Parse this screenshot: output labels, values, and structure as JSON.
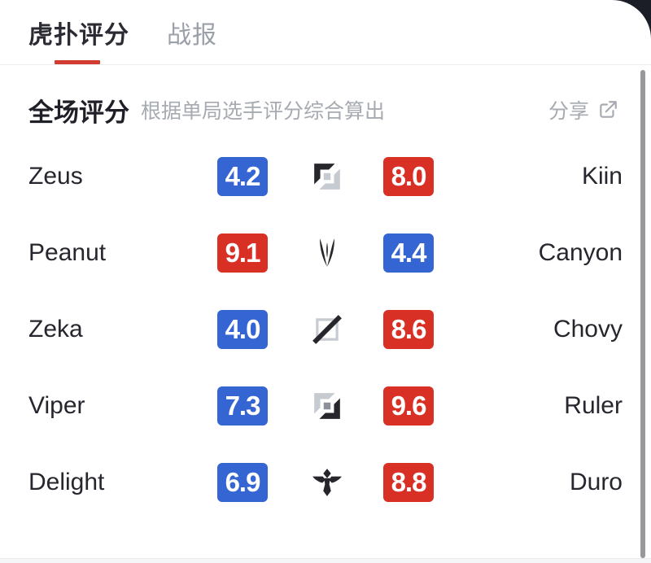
{
  "colors": {
    "blue": "#3565d2",
    "red": "#d93025",
    "tab_underline": "#d23b31",
    "page_background": "#1b1e26"
  },
  "tabs": [
    {
      "label": "虎扑评分",
      "active": true
    },
    {
      "label": "战报",
      "active": false
    }
  ],
  "header": {
    "title": "全场评分",
    "subtitle": "根据单局选手评分综合算出",
    "share_label": "分享"
  },
  "rows": [
    {
      "left_player": "Zeus",
      "left_score": "4.2",
      "left_color": "blue",
      "role": "top",
      "right_score": "8.0",
      "right_color": "red",
      "right_player": "Kiin"
    },
    {
      "left_player": "Peanut",
      "left_score": "9.1",
      "left_color": "red",
      "role": "jungle",
      "right_score": "4.4",
      "right_color": "blue",
      "right_player": "Canyon"
    },
    {
      "left_player": "Zeka",
      "left_score": "4.0",
      "left_color": "blue",
      "role": "mid",
      "right_score": "8.6",
      "right_color": "red",
      "right_player": "Chovy"
    },
    {
      "left_player": "Viper",
      "left_score": "7.3",
      "left_color": "blue",
      "role": "bot",
      "right_score": "9.6",
      "right_color": "red",
      "right_player": "Ruler"
    },
    {
      "left_player": "Delight",
      "left_score": "6.9",
      "left_color": "blue",
      "role": "support",
      "right_score": "8.8",
      "right_color": "red",
      "right_player": "Duro"
    }
  ]
}
